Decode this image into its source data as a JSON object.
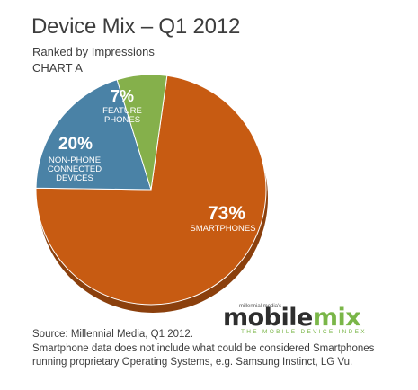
{
  "header": {
    "title": "Device Mix – Q1 2012",
    "subtitle": "Ranked by Impressions",
    "chart_id": "CHART A"
  },
  "chart_data": {
    "type": "pie",
    "title": "Device Mix – Q1 2012",
    "subtitle": "Ranked by Impressions",
    "slices": [
      {
        "label": "SMARTPHONES",
        "label_lines": [
          "SMARTPHONES"
        ],
        "value": 73,
        "value_label": "73%",
        "color": "#c75b12"
      },
      {
        "label": "NON-PHONE CONNECTED DEVICES",
        "label_lines": [
          "NON-PHONE",
          "CONNECTED",
          "DEVICES"
        ],
        "value": 20,
        "value_label": "20%",
        "color": "#4a82a6"
      },
      {
        "label": "FEATURE PHONES",
        "label_lines": [
          "FEATURE",
          "PHONES"
        ],
        "value": 7,
        "value_label": "7%",
        "color": "#85b04b"
      }
    ],
    "legend": "none",
    "style": "3d-tilted"
  },
  "footer": {
    "source": "Source: Millennial Media, Q1 2012.",
    "note": "Smartphone data does not include what could be considered Smartphones running proprietary Operating Systems, e.g. Samsung Instinct, LG Vu."
  },
  "logo": {
    "top_text": "millennial media's",
    "word_main": "mobile",
    "word_accent": "mix",
    "tagline": "THE MOBILE DEVICE INDEX"
  }
}
